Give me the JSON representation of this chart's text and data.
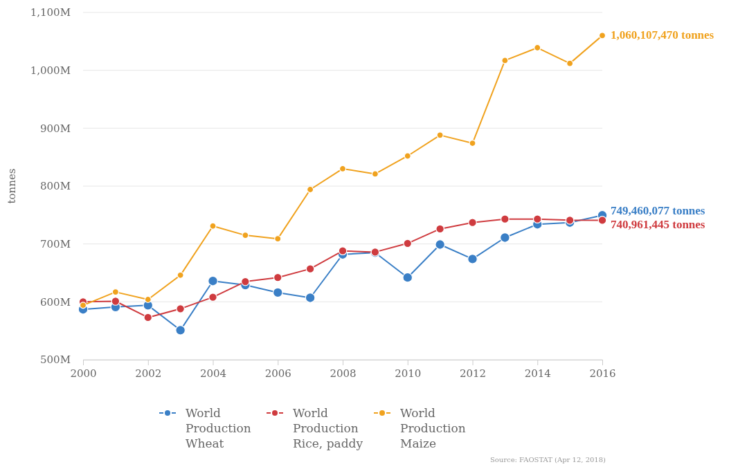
{
  "chart_data": {
    "type": "line",
    "ylabel": "tonnes",
    "x": [
      2000,
      2001,
      2002,
      2003,
      2004,
      2005,
      2006,
      2007,
      2008,
      2009,
      2010,
      2011,
      2012,
      2013,
      2014,
      2015,
      2016
    ],
    "xlim": [
      2000,
      2016
    ],
    "xticks": [
      2000,
      2002,
      2004,
      2006,
      2008,
      2010,
      2012,
      2014,
      2016
    ],
    "ylim": [
      500000000,
      1100000000
    ],
    "yticks": [
      {
        "value": 500000000,
        "label": "500M"
      },
      {
        "value": 600000000,
        "label": "600M"
      },
      {
        "value": 700000000,
        "label": "700M"
      },
      {
        "value": 800000000,
        "label": "800M"
      },
      {
        "value": 900000000,
        "label": "900M"
      },
      {
        "value": 1000000000,
        "label": "1,000M"
      },
      {
        "value": 1100000000,
        "label": "1,100M"
      }
    ],
    "grid": "y",
    "legend": "bottom",
    "marker": "circle",
    "line_style": "solid",
    "series": [
      {
        "name": "World Production Wheat",
        "color": "#3a7fc6",
        "values": [
          587000000,
          591000000,
          594000000,
          551000000,
          636000000,
          629000000,
          616000000,
          607000000,
          682000000,
          685000000,
          642000000,
          699000000,
          674000000,
          711000000,
          734000000,
          737000000,
          749460077
        ],
        "value_labels": [
          null,
          null,
          null,
          null,
          null,
          null,
          null,
          null,
          null,
          null,
          null,
          null,
          null,
          null,
          null,
          null,
          "749,460,077 tonnes"
        ]
      },
      {
        "name": "World Production Rice, paddy",
        "color": "#cf3b3f",
        "values": [
          600000000,
          601000000,
          573000000,
          588000000,
          608000000,
          635000000,
          642000000,
          657000000,
          688000000,
          686000000,
          701000000,
          726000000,
          737000000,
          743000000,
          743000000,
          741000000,
          740961445
        ],
        "value_labels": [
          null,
          null,
          null,
          null,
          null,
          null,
          null,
          null,
          null,
          null,
          null,
          null,
          null,
          null,
          null,
          null,
          "740,961,445 tonnes"
        ]
      },
      {
        "name": "World Production Maize",
        "color": "#f0a21e",
        "values": [
          594000000,
          617000000,
          604000000,
          646000000,
          731000000,
          715000000,
          709000000,
          794000000,
          830000000,
          821000000,
          852000000,
          888000000,
          874000000,
          1017000000,
          1039000000,
          1012000000,
          1060107470
        ],
        "value_labels": [
          null,
          null,
          null,
          null,
          null,
          null,
          null,
          null,
          null,
          null,
          null,
          null,
          null,
          null,
          null,
          null,
          "1,060,107,470 tonnes"
        ]
      }
    ],
    "annotations": [
      "Source: FAOSTAT (Apr 12, 2018)"
    ]
  }
}
